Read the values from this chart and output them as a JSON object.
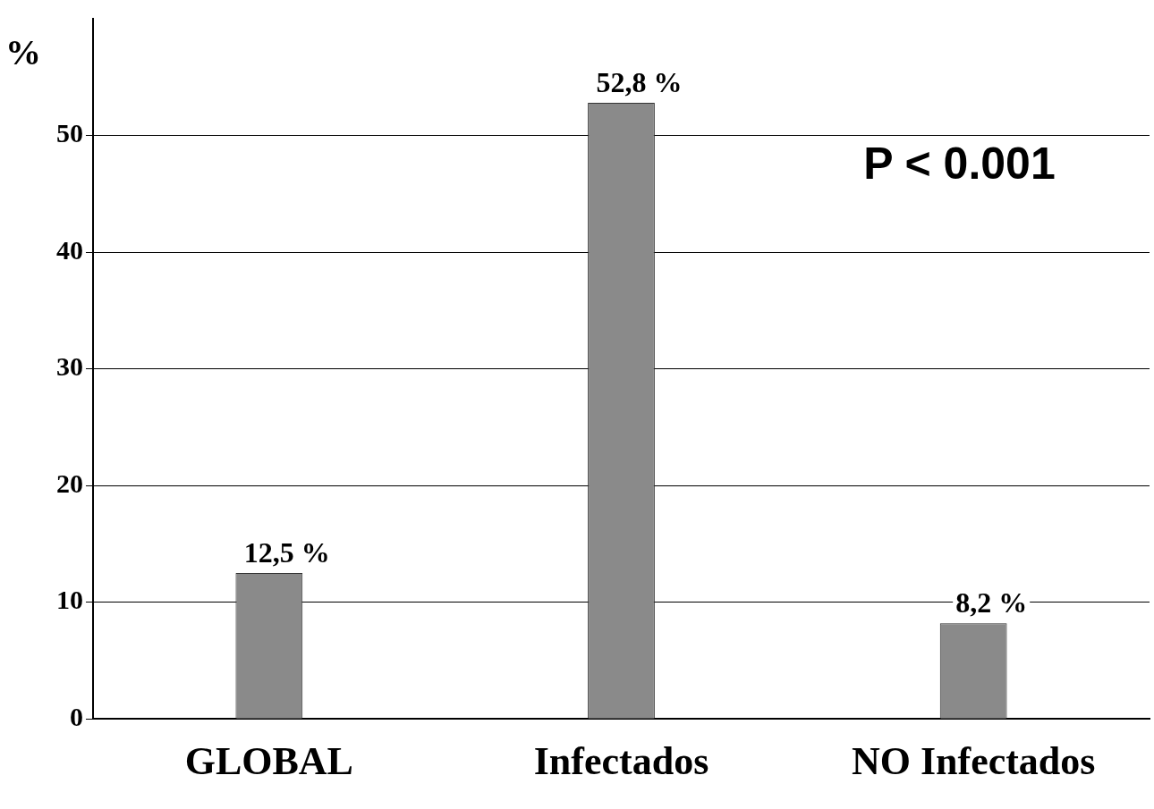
{
  "chart_data": {
    "type": "bar",
    "ylabel": "%",
    "categories": [
      "GLOBAL",
      "Infectados",
      "NO Infectados"
    ],
    "values": [
      12.5,
      52.8,
      8.2
    ],
    "color": "#8a8a8a",
    "value_labels": [
      "12,5 %",
      "52,8 %",
      "8,2 %"
    ],
    "ylim": [
      0,
      60
    ],
    "yticks": [
      0,
      10,
      20,
      30,
      40,
      50
    ],
    "grid": "y",
    "annotations": [
      "P < 0.001"
    ]
  }
}
